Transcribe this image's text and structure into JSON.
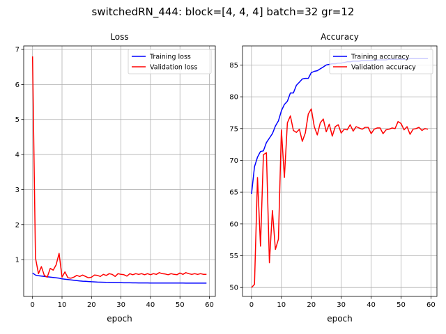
{
  "figure_title": "switchedRN_444: block=[4, 4, 4] batch=32 gr=12",
  "chart_data": [
    {
      "type": "line",
      "title": "Loss",
      "xlabel": "epoch",
      "ylabel": "",
      "xlim": [
        -3,
        62
      ],
      "ylim": [
        -0.05,
        7.1
      ],
      "xticks": [
        0,
        10,
        20,
        30,
        40,
        50,
        60
      ],
      "yticks": [
        1,
        2,
        3,
        4,
        5,
        6,
        7
      ],
      "grid": true,
      "legend_position": "top-right",
      "series": [
        {
          "name": "Training loss",
          "color": "#0000ff",
          "x": [
            0,
            1,
            2,
            3,
            4,
            5,
            6,
            7,
            8,
            9,
            10,
            11,
            12,
            13,
            14,
            15,
            16,
            17,
            18,
            19,
            20,
            21,
            22,
            23,
            24,
            25,
            26,
            27,
            28,
            29,
            30,
            31,
            32,
            33,
            34,
            35,
            36,
            37,
            38,
            39,
            40,
            41,
            42,
            43,
            44,
            45,
            46,
            47,
            48,
            49,
            50,
            51,
            52,
            53,
            54,
            55,
            56,
            57,
            58,
            59
          ],
          "y": [
            0.62,
            0.56,
            0.54,
            0.53,
            0.52,
            0.51,
            0.5,
            0.49,
            0.48,
            0.47,
            0.45,
            0.44,
            0.43,
            0.42,
            0.41,
            0.4,
            0.39,
            0.385,
            0.38,
            0.375,
            0.37,
            0.365,
            0.36,
            0.358,
            0.355,
            0.352,
            0.35,
            0.348,
            0.346,
            0.344,
            0.342,
            0.34,
            0.34,
            0.339,
            0.338,
            0.337,
            0.336,
            0.336,
            0.335,
            0.335,
            0.334,
            0.334,
            0.333,
            0.333,
            0.333,
            0.332,
            0.332,
            0.332,
            0.331,
            0.331,
            0.331,
            0.331,
            0.33,
            0.33,
            0.33,
            0.33,
            0.33,
            0.33,
            0.33,
            0.33
          ]
        },
        {
          "name": "Validation loss",
          "color": "#ff0000",
          "x": [
            0,
            1,
            2,
            3,
            4,
            5,
            6,
            7,
            8,
            9,
            10,
            11,
            12,
            13,
            14,
            15,
            16,
            17,
            18,
            19,
            20,
            21,
            22,
            23,
            24,
            25,
            26,
            27,
            28,
            29,
            30,
            31,
            32,
            33,
            34,
            35,
            36,
            37,
            38,
            39,
            40,
            41,
            42,
            43,
            44,
            45,
            46,
            47,
            48,
            49,
            50,
            51,
            52,
            53,
            54,
            55,
            56,
            57,
            58,
            59
          ],
          "y": [
            6.8,
            1.05,
            0.6,
            0.8,
            0.55,
            0.5,
            0.75,
            0.7,
            0.85,
            1.18,
            0.5,
            0.65,
            0.48,
            0.47,
            0.5,
            0.55,
            0.52,
            0.56,
            0.52,
            0.48,
            0.5,
            0.56,
            0.55,
            0.52,
            0.58,
            0.55,
            0.6,
            0.58,
            0.52,
            0.6,
            0.58,
            0.57,
            0.53,
            0.6,
            0.57,
            0.6,
            0.58,
            0.6,
            0.57,
            0.6,
            0.57,
            0.6,
            0.58,
            0.63,
            0.6,
            0.59,
            0.57,
            0.6,
            0.58,
            0.57,
            0.62,
            0.58,
            0.63,
            0.6,
            0.58,
            0.6,
            0.58,
            0.6,
            0.58,
            0.58
          ]
        }
      ]
    },
    {
      "type": "line",
      "title": "Accuracy",
      "xlabel": "epoch",
      "ylabel": "",
      "xlim": [
        -3,
        62
      ],
      "ylim": [
        48.6,
        88.0
      ],
      "xticks": [
        0,
        10,
        20,
        30,
        40,
        50,
        60
      ],
      "yticks": [
        50,
        55,
        60,
        65,
        70,
        75,
        80,
        85
      ],
      "grid": true,
      "legend_position": "top-right",
      "series": [
        {
          "name": "Training accuracy",
          "color": "#0000ff",
          "x": [
            0,
            1,
            2,
            3,
            4,
            5,
            6,
            7,
            8,
            9,
            10,
            11,
            12,
            13,
            14,
            15,
            16,
            17,
            18,
            19,
            20,
            21,
            22,
            23,
            24,
            25,
            26,
            27,
            28,
            29,
            30,
            31,
            32,
            33,
            34,
            35,
            36,
            37,
            38,
            39,
            40,
            41,
            42,
            43,
            44,
            45,
            46,
            47,
            48,
            49,
            50,
            51,
            52,
            53,
            54,
            55,
            56,
            57,
            58,
            59
          ],
          "y": [
            64.7,
            69.0,
            70.5,
            71.4,
            71.5,
            72.8,
            73.5,
            74.2,
            75.4,
            76.2,
            77.8,
            78.8,
            79.3,
            80.6,
            80.6,
            81.8,
            82.3,
            82.8,
            82.9,
            82.9,
            83.8,
            84.0,
            84.1,
            84.4,
            84.7,
            85.0,
            85.1,
            85.2,
            85.2,
            85.3,
            85.3,
            85.4,
            85.5,
            85.5,
            85.6,
            85.6,
            85.6,
            85.7,
            85.7,
            85.7,
            85.7,
            85.8,
            85.8,
            85.8,
            85.8,
            85.8,
            85.9,
            85.9,
            85.9,
            85.9,
            85.9,
            85.9,
            85.9,
            86.0,
            86.0,
            86.0,
            86.0,
            86.0,
            86.0,
            86.0
          ]
        },
        {
          "name": "Validation accuracy",
          "color": "#ff0000",
          "x": [
            0,
            1,
            2,
            3,
            4,
            5,
            6,
            7,
            8,
            9,
            10,
            11,
            12,
            13,
            14,
            15,
            16,
            17,
            18,
            19,
            20,
            21,
            22,
            23,
            24,
            25,
            26,
            27,
            28,
            29,
            30,
            31,
            32,
            33,
            34,
            35,
            36,
            37,
            38,
            39,
            40,
            41,
            42,
            43,
            44,
            45,
            46,
            47,
            48,
            49,
            50,
            51,
            52,
            53,
            54,
            55,
            56,
            57,
            58,
            59
          ],
          "y": [
            50.0,
            50.5,
            67.3,
            56.5,
            70.9,
            71.2,
            53.9,
            62.1,
            56.0,
            57.6,
            74.8,
            67.3,
            75.9,
            77.0,
            74.7,
            74.4,
            74.9,
            73.0,
            74.3,
            77.3,
            78.1,
            75.3,
            74.0,
            75.9,
            76.5,
            74.5,
            75.7,
            73.8,
            75.3,
            75.6,
            74.3,
            74.9,
            74.8,
            75.6,
            74.6,
            75.3,
            75.1,
            74.9,
            75.2,
            75.2,
            74.2,
            74.9,
            75.1,
            75.1,
            74.2,
            74.8,
            74.9,
            75.1,
            75.0,
            76.1,
            75.8,
            74.8,
            75.3,
            74.1,
            74.9,
            75.0,
            75.2,
            74.7,
            75.0,
            74.9
          ]
        }
      ]
    }
  ]
}
